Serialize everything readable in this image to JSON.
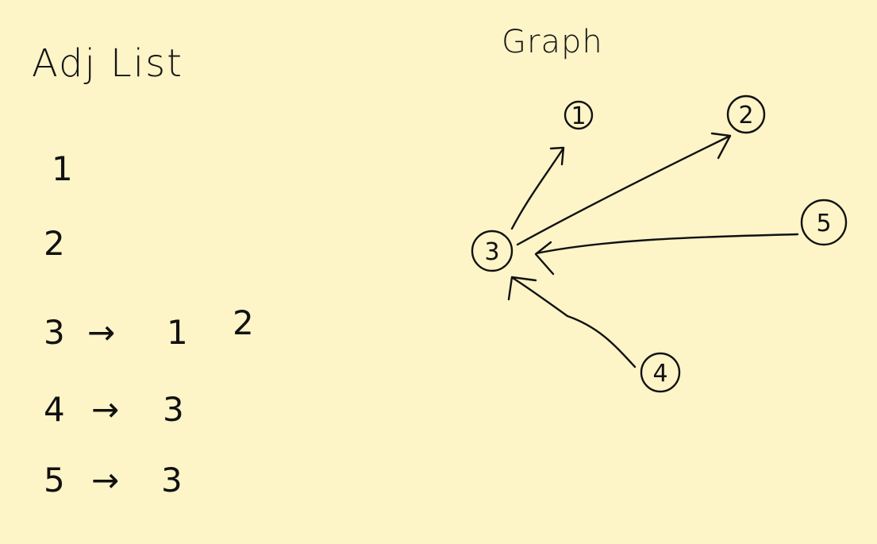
{
  "adj_list": {
    "title": "Adj List",
    "rows": [
      {
        "node": "1",
        "arrow": "",
        "targets": []
      },
      {
        "node": "2",
        "arrow": "",
        "targets": []
      },
      {
        "node": "3",
        "arrow": "→",
        "targets": [
          "1",
          "2"
        ]
      },
      {
        "node": "4",
        "arrow": "→",
        "targets": [
          "3"
        ]
      },
      {
        "node": "5",
        "arrow": "→",
        "targets": [
          "3"
        ]
      }
    ]
  },
  "graph": {
    "title": "Graph",
    "nodes": [
      "1",
      "2",
      "3",
      "4",
      "5"
    ],
    "edges": [
      {
        "from": "3",
        "to": "1"
      },
      {
        "from": "3",
        "to": "2"
      },
      {
        "from": "4",
        "to": "3"
      },
      {
        "from": "5",
        "to": "3"
      }
    ]
  }
}
